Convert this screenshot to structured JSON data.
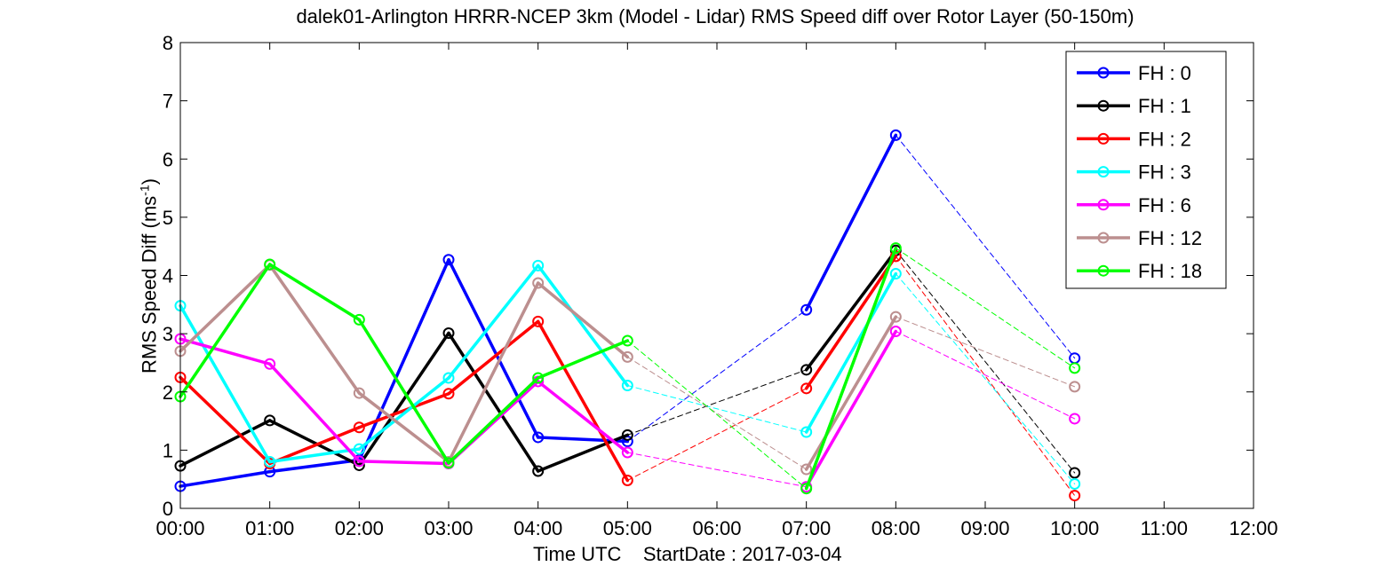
{
  "chart_data": {
    "type": "line",
    "title": "dalek01-Arlington HRRR-NCEP 3km (Model - Lidar) RMS Speed diff over Rotor Layer (50-150m)",
    "xlabel_prefix": "Time UTC",
    "xlabel_startdate": "StartDate : 2017-03-04",
    "ylabel_main": "RMS Speed Diff (ms",
    "ylabel_sup": "-1",
    "ylabel_close": ")",
    "x_ticks": [
      "00:00",
      "01:00",
      "02:00",
      "03:00",
      "04:00",
      "05:00",
      "06:00",
      "07:00",
      "08:00",
      "09:00",
      "10:00",
      "11:00",
      "12:00"
    ],
    "y_ticks": [
      "0",
      "1",
      "2",
      "3",
      "4",
      "5",
      "6",
      "7",
      "8"
    ],
    "xlim_hours": [
      0,
      12
    ],
    "ylim": [
      0,
      8
    ],
    "grid": false,
    "legend_position": "top-right",
    "series": [
      {
        "name": "FH : 0",
        "color": "#0000ff",
        "x": [
          0,
          1,
          2,
          3,
          4,
          5,
          7,
          8,
          10
        ],
        "values": [
          0.38,
          0.63,
          0.83,
          4.27,
          1.22,
          1.15,
          3.41,
          6.41,
          2.58
        ]
      },
      {
        "name": "FH : 1",
        "color": "#000000",
        "x": [
          0,
          1,
          2,
          3,
          4,
          5,
          7,
          8,
          10
        ],
        "values": [
          0.73,
          1.51,
          0.74,
          3.01,
          0.64,
          1.26,
          2.38,
          4.43,
          0.61
        ]
      },
      {
        "name": "FH : 2",
        "color": "#ff0000",
        "x": [
          0,
          1,
          2,
          3,
          4,
          5,
          7,
          8,
          10
        ],
        "values": [
          2.25,
          0.77,
          1.39,
          1.97,
          3.21,
          0.48,
          2.06,
          4.33,
          0.22
        ]
      },
      {
        "name": "FH : 3",
        "color": "#00ffff",
        "x": [
          0,
          1,
          2,
          3,
          4,
          5,
          7,
          8,
          10
        ],
        "values": [
          3.48,
          0.8,
          1.02,
          2.24,
          4.17,
          2.11,
          1.31,
          4.03,
          0.42
        ]
      },
      {
        "name": "FH : 6",
        "color": "#ff00ff",
        "x": [
          0,
          1,
          2,
          3,
          4,
          5,
          7,
          8,
          10
        ],
        "values": [
          2.91,
          2.48,
          0.81,
          0.77,
          2.18,
          0.96,
          0.37,
          3.04,
          1.54
        ]
      },
      {
        "name": "FH : 12",
        "color": "#bc8f8f",
        "x": [
          0,
          1,
          2,
          3,
          4,
          5,
          7,
          8,
          10
        ],
        "values": [
          2.7,
          4.18,
          1.98,
          0.8,
          3.87,
          2.6,
          0.67,
          3.29,
          2.09
        ]
      },
      {
        "name": "FH : 18",
        "color": "#00ff00",
        "x": [
          0,
          1,
          2,
          3,
          4,
          5,
          7,
          8,
          10
        ],
        "values": [
          1.92,
          4.19,
          3.24,
          0.78,
          2.24,
          2.88,
          0.34,
          4.47,
          2.41
        ]
      }
    ]
  }
}
